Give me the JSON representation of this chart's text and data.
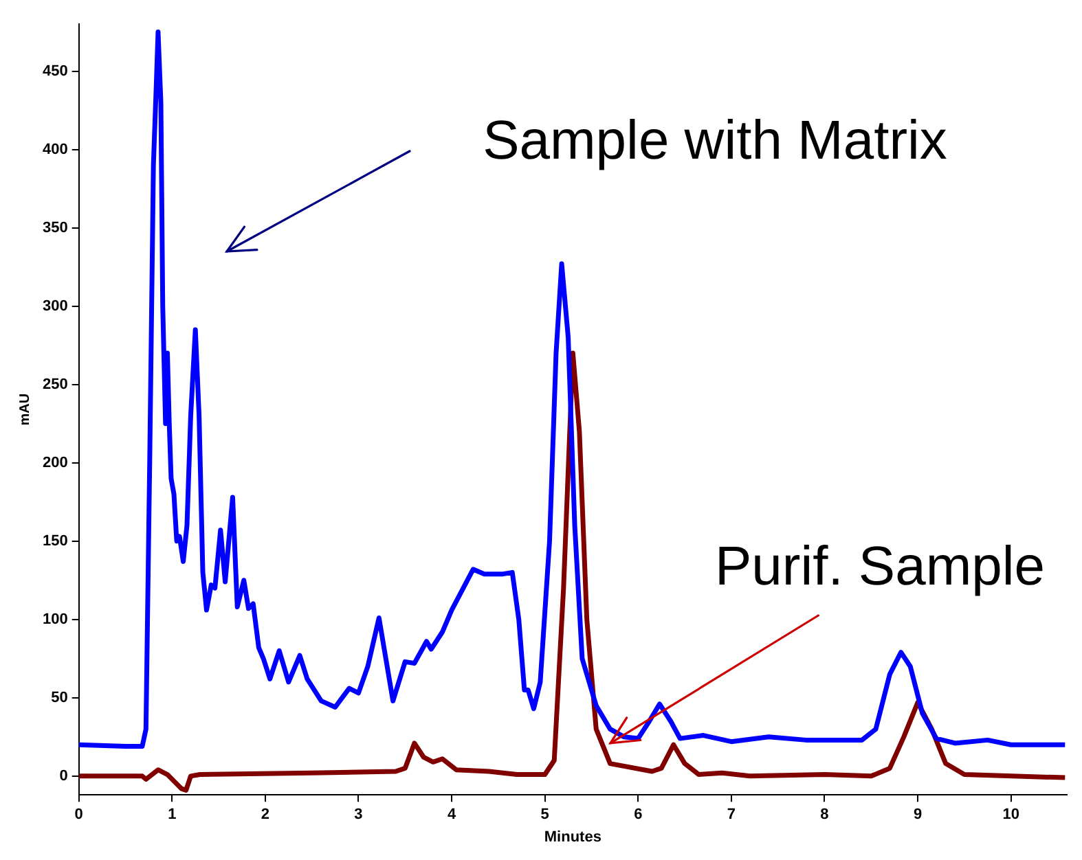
{
  "chart_data": {
    "type": "line",
    "xlabel": "Minutes",
    "ylabel": "mAU",
    "xlim": [
      0,
      10.6
    ],
    "ylim": [
      -12,
      480
    ],
    "xticks": [
      0,
      1,
      2,
      3,
      4,
      5,
      6,
      7,
      8,
      9,
      10
    ],
    "yticks": [
      0,
      50,
      100,
      150,
      200,
      250,
      300,
      350,
      400,
      450
    ],
    "grid": false,
    "legend": false,
    "marker": "none",
    "line_style": "solid",
    "series": [
      {
        "color": "#0000ff",
        "x": [
          0,
          0.5,
          0.68,
          0.72,
          0.76,
          0.8,
          0.83,
          0.85,
          0.88,
          0.9,
          0.93,
          0.95,
          0.97,
          0.99,
          1.02,
          1.05,
          1.08,
          1.12,
          1.16,
          1.2,
          1.25,
          1.29,
          1.33,
          1.37,
          1.42,
          1.46,
          1.52,
          1.57,
          1.65,
          1.7,
          1.77,
          1.82,
          1.87,
          1.93,
          1.98,
          2.05,
          2.15,
          2.25,
          2.37,
          2.45,
          2.6,
          2.75,
          2.9,
          3.0,
          3.1,
          3.22,
          3.37,
          3.5,
          3.6,
          3.73,
          3.78,
          3.9,
          4.0,
          4.23,
          4.35,
          4.55,
          4.65,
          4.72,
          4.78,
          4.82,
          4.88,
          4.95,
          5.05,
          5.12,
          5.18,
          5.25,
          5.32,
          5.4,
          5.55,
          5.7,
          5.85,
          6.0,
          6.12,
          6.23,
          6.35,
          6.45,
          6.7,
          7.0,
          7.4,
          7.8,
          8.4,
          8.55,
          8.7,
          8.82,
          8.92,
          9.05,
          9.2,
          9.4,
          9.75,
          10.0,
          10.58
        ],
        "values": [
          20,
          19,
          19,
          30,
          200,
          390,
          440,
          475,
          430,
          300,
          225,
          270,
          225,
          190,
          180,
          150,
          153,
          137,
          160,
          230,
          285,
          230,
          130,
          106,
          122,
          120,
          157,
          124,
          178,
          108,
          125,
          107,
          110,
          82,
          75,
          62,
          80,
          60,
          77,
          62,
          48,
          44,
          56,
          53,
          70,
          101,
          48,
          73,
          72,
          86,
          81,
          92,
          106,
          132,
          129,
          129,
          130,
          100,
          55,
          55,
          43,
          60,
          150,
          270,
          327,
          280,
          160,
          75,
          45,
          30,
          25,
          24,
          35,
          46,
          35,
          24,
          26,
          22,
          25,
          23,
          23,
          30,
          65,
          79,
          70,
          40,
          24,
          21,
          23,
          20,
          20
        ]
      },
      {
        "color": "#800000",
        "x": [
          0,
          0.68,
          0.72,
          0.85,
          0.95,
          1.1,
          1.15,
          1.2,
          1.3,
          2.5,
          3.4,
          3.5,
          3.6,
          3.7,
          3.8,
          3.9,
          4.05,
          4.4,
          4.7,
          5.0,
          5.1,
          5.2,
          5.3,
          5.37,
          5.45,
          5.55,
          5.7,
          6.15,
          6.25,
          6.38,
          6.5,
          6.65,
          6.9,
          7.2,
          8.0,
          8.5,
          8.7,
          8.85,
          9.0,
          9.15,
          9.3,
          9.5,
          10.58
        ],
        "values": [
          0,
          0,
          -2,
          4,
          1,
          -8,
          -9,
          0,
          1,
          2,
          3,
          5,
          21,
          12,
          9,
          11,
          4,
          3,
          1,
          1,
          10,
          120,
          270,
          220,
          100,
          30,
          8,
          3,
          5,
          20,
          8,
          1,
          2,
          0,
          1,
          0,
          5,
          25,
          47,
          30,
          8,
          1,
          -1
        ]
      }
    ],
    "annotations": [
      "Sample with Matrix",
      {
        "text": "Purif. Sample",
        "x": 5.7,
        "y": 21
      }
    ]
  }
}
